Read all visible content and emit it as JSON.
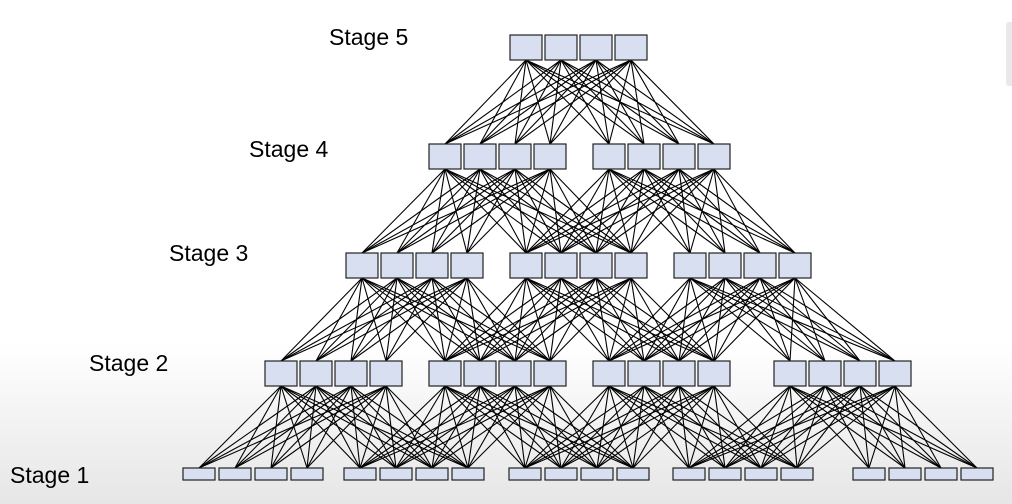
{
  "diagram": {
    "stages": [
      {
        "label": "Stage 1",
        "groups": 5,
        "switches_per_group": 4
      },
      {
        "label": "Stage 2",
        "groups": 4,
        "switches_per_group": 4
      },
      {
        "label": "Stage 3",
        "groups": 3,
        "switches_per_group": 4
      },
      {
        "label": "Stage 4",
        "groups": 2,
        "switches_per_group": 4
      },
      {
        "label": "Stage 5",
        "groups": 1,
        "switches_per_group": 4
      }
    ],
    "colors": {
      "switch_fill": "#d7dff0",
      "switch_stroke": "#222222",
      "link": "#000000"
    }
  }
}
